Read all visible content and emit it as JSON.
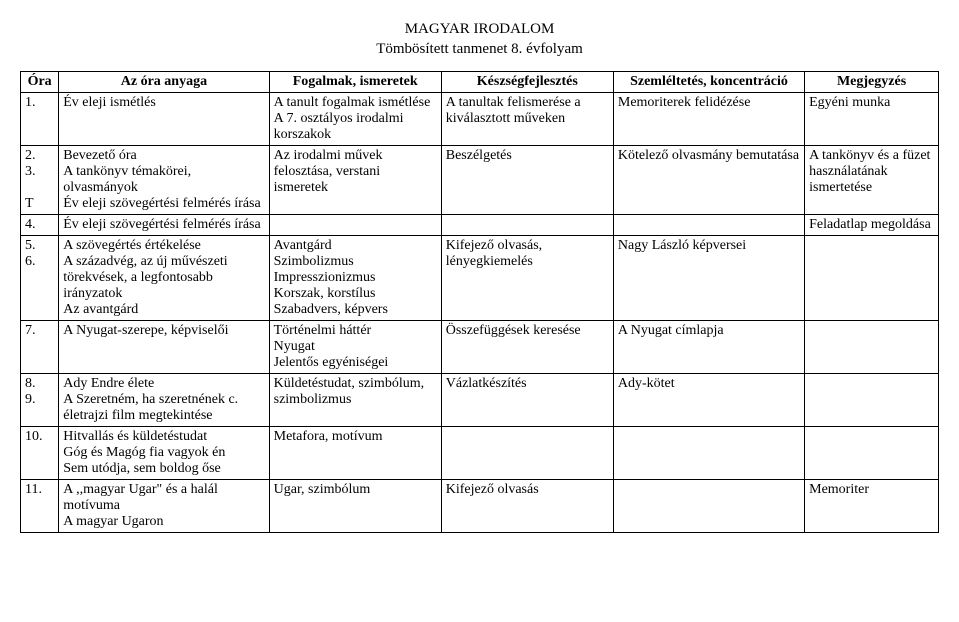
{
  "title_line1": "MAGYAR IRODALOM",
  "title_line2": "Tömbösített tanmenet 8. évfolyam",
  "headers": {
    "h0": "Óra",
    "h1": "Az óra anyaga",
    "h2": "Fogalmak, ismeretek",
    "h3": "Készségfejlesztés",
    "h4": "Szemléltetés, koncentráció",
    "h5": "Megjegyzés"
  },
  "rows": {
    "r1": {
      "num": "1.",
      "anyag": "Év eleji ismétlés",
      "fogalmak": "A tanult fogalmak ismétlése\nA 7. osztályos irodalmi korszakok",
      "keszseg": "A tanultak felismerése a kiválasztott műveken",
      "szem": "Memoriterek felidézése",
      "megj": "Egyéni munka"
    },
    "r2": {
      "num": "2.\n3.\n\nT",
      "anyag": "Bevezető óra\nA tankönyv témakörei, olvasmányok\nÉv eleji szövegértési felmérés írása",
      "fogalmak": "Az irodalmi művek felosztása, verstani ismeretek",
      "keszseg": "Beszélgetés",
      "szem": "Kötelező olvasmány bemutatása",
      "megj": "A tankönyv és a füzet használatának ismertetése"
    },
    "r3": {
      "num": "4.",
      "anyag": "Év eleji szövegértési felmérés írása",
      "fogalmak": "",
      "keszseg": "",
      "szem": "",
      "megj": "Feladatlap megoldása"
    },
    "r4": {
      "num": "5.\n6.",
      "anyag": "A szövegértés értékelése\nA századvég, az új művészeti törekvések, a legfontosabb irányzatok\nAz avantgárd",
      "fogalmak": "Avantgárd\nSzimbolizmus\nImpresszionizmus\nKorszak, korstílus\nSzabadvers, képvers",
      "keszseg": "Kifejező olvasás, lényegkiemelés",
      "szem": "Nagy László képversei",
      "megj": ""
    },
    "r5": {
      "num": "7.",
      "anyag": "A Nyugat-szerepe, képviselői",
      "fogalmak": "Történelmi háttér\nNyugat\nJelentős egyéniségei",
      "keszseg": "Összefüggések keresése",
      "szem": "A Nyugat címlapja",
      "megj": ""
    },
    "r6": {
      "num": "8.\n9.",
      "anyag": "Ady Endre élete\nA Szeretném, ha szeretnének c. életrajzi film megtekintése",
      "fogalmak": "Küldetéstudat, szimbólum, szimbolizmus",
      "keszseg": "Vázlatkészítés",
      "szem": "Ady-kötet",
      "megj": ""
    },
    "r7": {
      "num": "10.",
      "anyag": "Hitvallás és küldetéstudat\nGóg és Magóg fia vagyok én\nSem utódja, sem boldog őse",
      "fogalmak": "Metafora, motívum",
      "keszseg": "",
      "szem": "",
      "megj": ""
    },
    "r8": {
      "num": "11.",
      "anyag": "A ,,magyar Ugar\" és a halál motívuma\nA magyar Ugaron",
      "fogalmak": "Ugar, szimbólum",
      "keszseg": "Kifejező olvasás",
      "szem": "",
      "megj": "Memoriter"
    }
  }
}
